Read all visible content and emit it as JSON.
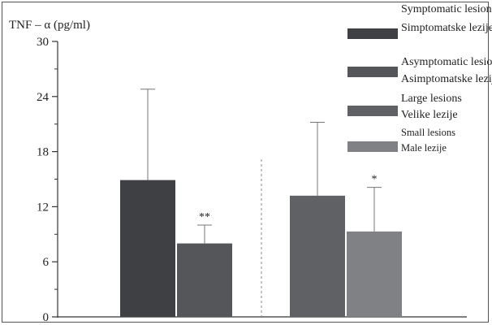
{
  "chart_data": {
    "type": "bar",
    "ylabel": "TNF – α (pg/ml)",
    "ylim": [
      0,
      30
    ],
    "yticks": [
      "0",
      "6",
      "12",
      "18",
      "24",
      "30"
    ],
    "grid": false,
    "legend_position": "top-right",
    "groups": [
      {
        "bars": [
          {
            "series": "symptomatic",
            "value": 14.9,
            "error": 9.9,
            "annotation": ""
          },
          {
            "series": "asymptomatic",
            "value": 8.0,
            "error": 2.0,
            "annotation": "**"
          }
        ]
      },
      {
        "bars": [
          {
            "series": "large",
            "value": 13.2,
            "error": 8.0,
            "annotation": ""
          },
          {
            "series": "small",
            "value": 9.3,
            "error": 4.8,
            "annotation": "*"
          }
        ]
      }
    ],
    "series": [
      {
        "id": "symptomatic",
        "name": "Symptomatic lesions",
        "name2": "Simptomatske lezije",
        "color": "#3f4044"
      },
      {
        "id": "asymptomatic",
        "name": "Asymptomatic lesions",
        "name2": "Asimptomatske lezije",
        "color": "#55565a"
      },
      {
        "id": "large",
        "name": "Large lesions",
        "name2": "Velike lezije",
        "color": "#606164"
      },
      {
        "id": "small",
        "name": "Small lesions",
        "name2": "Male lezije",
        "color": "#808185"
      }
    ]
  }
}
